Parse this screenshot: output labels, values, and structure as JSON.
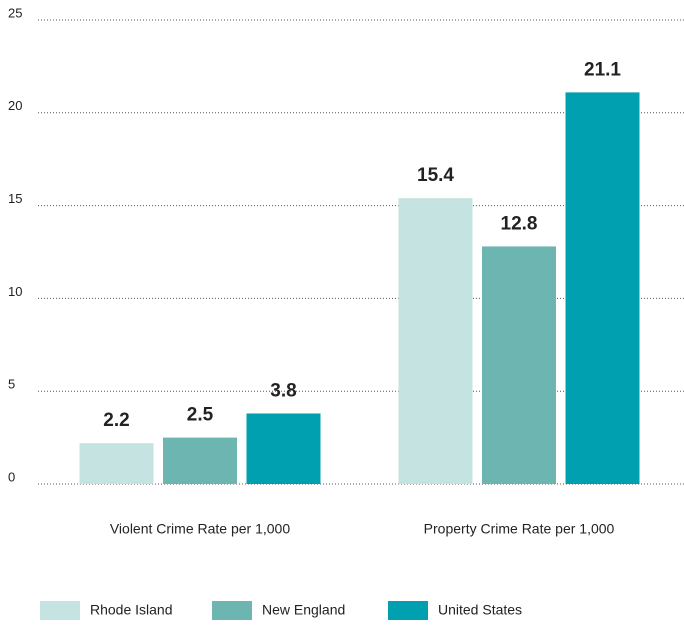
{
  "chart_data": {
    "type": "bar",
    "categories": [
      "Violent Crime Rate per 1,000",
      "Property Crime Rate per 1,000"
    ],
    "series": [
      {
        "name": "Rhode Island",
        "color": "#c5e4e1",
        "values": [
          2.2,
          15.4
        ]
      },
      {
        "name": "New England",
        "color": "#6db5b0",
        "values": [
          2.5,
          12.8
        ]
      },
      {
        "name": "United States",
        "color": "#00a0b0",
        "values": [
          3.8,
          21.1
        ]
      }
    ],
    "ylim": [
      0,
      25
    ],
    "yticks": [
      0,
      5,
      10,
      15,
      20,
      25
    ],
    "grid": true,
    "legend": "bottom"
  }
}
